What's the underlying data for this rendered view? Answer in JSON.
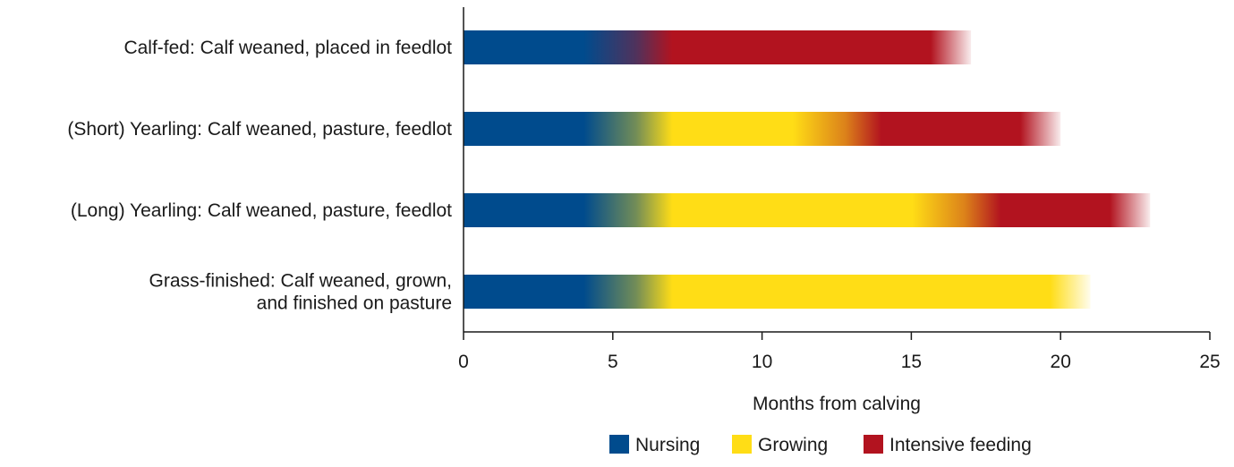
{
  "chart_data": {
    "type": "bar",
    "orientation": "horizontal",
    "stacked": true,
    "xlabel": "Months from calving",
    "xlim": [
      0,
      25
    ],
    "xticks": [
      0,
      5,
      10,
      15,
      20,
      25
    ],
    "grid": false,
    "legend_position": "bottom-center",
    "categories": [
      [
        "Calf-fed: Calf weaned, placed in feedlot"
      ],
      [
        "(Short) Yearling: Calf weaned, pasture, feedlot"
      ],
      [
        "(Long) Yearling: Calf weaned, pasture, feedlot"
      ],
      [
        "Grass-finished: Calf weaned, grown,",
        "and finished on pasture"
      ]
    ],
    "series": [
      {
        "name": "Nursing",
        "color": "#004b8d",
        "values": [
          7,
          7,
          7,
          7
        ]
      },
      {
        "name": "Growing",
        "color": "#ffdd16",
        "values": [
          0,
          7,
          11,
          14
        ]
      },
      {
        "name": "Intensive feeding",
        "color": "#b2131f",
        "values": [
          10,
          6,
          5,
          0
        ]
      }
    ],
    "bar_ends": [
      17,
      20,
      23,
      21
    ]
  }
}
